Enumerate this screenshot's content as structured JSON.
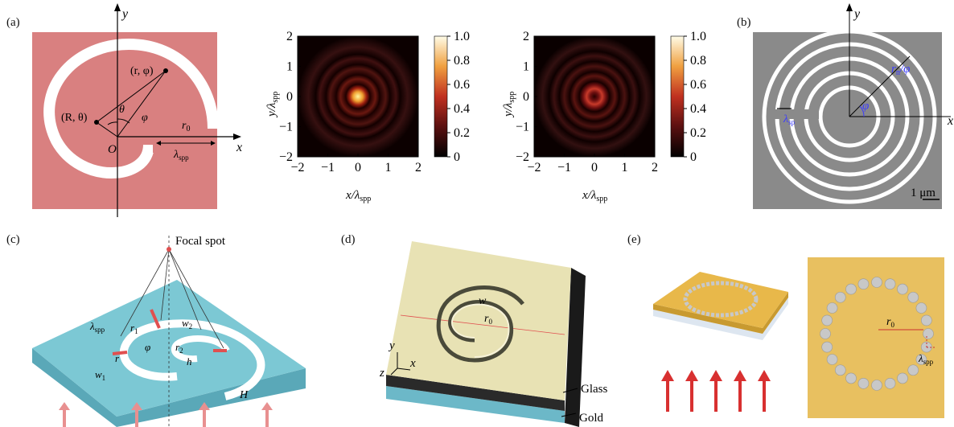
{
  "panel_labels": {
    "a": "(a)",
    "b": "(b)",
    "c": "(c)",
    "d": "(d)",
    "e": "(e)"
  },
  "panel_a": {
    "axis_x": "x",
    "axis_y": "y",
    "origin": "O",
    "point_r_phi": "(r, φ)",
    "point_R_theta": "(R, θ)",
    "theta": "θ",
    "phi": "φ",
    "r0": "r",
    "r0_sub": "0",
    "lambda": "λ",
    "lambda_sub": "spp",
    "colors": {
      "bg": "#d98080",
      "slit": "#ffffff"
    }
  },
  "heatmap_1": {
    "type": "heatmap",
    "pattern": "central-spot",
    "xlabel": "x/λ",
    "xlabel_sub": "spp",
    "ylabel": "y/λ",
    "ylabel_sub": "spp",
    "xlim": [
      -2,
      2
    ],
    "ylim": [
      -2,
      2
    ],
    "xticks": [
      "−2",
      "−1",
      "0",
      "1",
      "2"
    ],
    "yticks": [
      "2",
      "1",
      "0",
      "−1",
      "−2"
    ],
    "colorbar_ticks": [
      "1.0",
      "0.8",
      "0.6",
      "0.4",
      "0.2",
      "0"
    ]
  },
  "heatmap_2": {
    "type": "heatmap",
    "pattern": "donut",
    "xlabel": "x/λ",
    "xlabel_sub": "spp",
    "ylabel": "y/λ",
    "ylabel_sub": "spp",
    "xlim": [
      -2,
      2
    ],
    "ylim": [
      -2,
      2
    ],
    "xticks": [
      "−2",
      "−1",
      "0",
      "1",
      "2"
    ],
    "yticks": [
      "2",
      "1",
      "0",
      "−1",
      "−2"
    ],
    "colorbar_ticks": [
      "1.0",
      "0.8",
      "0.6",
      "0.4",
      "0.2",
      "0"
    ]
  },
  "panel_b": {
    "axis_y": "y",
    "axis_x": "x",
    "r_label": "r",
    "r_sub": "n",
    "r_suffix": "/φ",
    "phi": "φ",
    "lambda": "λ",
    "lambda_sub": "sp",
    "scalebar": "1 μm",
    "colors": {
      "bg": "#8a8a8a",
      "ring": "#ffffff",
      "accent": "#3a3aff"
    }
  },
  "panel_c": {
    "focal_spot": "Focal spot",
    "lambda": "λ",
    "lambda_sub": "spp",
    "r1": "r",
    "r1_sub": "1",
    "r2": "r",
    "r2_sub": "2",
    "w1": "w",
    "w1_sub": "1",
    "w2": "w",
    "w2_sub": "2",
    "r": "r",
    "phi": "φ",
    "h": "h",
    "H": "H",
    "colors": {
      "slab": "#7cc8d4",
      "slab_side": "#5aa8b8",
      "arrow": "#e89090",
      "accent": "#e05050"
    }
  },
  "panel_d": {
    "w": "w",
    "r0": "r",
    "r0_sub": "0",
    "axis_x": "x",
    "axis_y": "y",
    "axis_z": "z",
    "glass": "Glass",
    "gold": "Gold",
    "colors": {
      "top": "#e8e2b4",
      "side": "#1a1a1a",
      "gold_layer": "#6cb8c8"
    }
  },
  "panel_e": {
    "r0": "r",
    "r0_sub": "0",
    "lambda": "λ",
    "lambda_sub": "spp",
    "colors": {
      "gold": "#e8b84a",
      "hole": "#c8c8c8",
      "arrow": "#d83030"
    }
  }
}
